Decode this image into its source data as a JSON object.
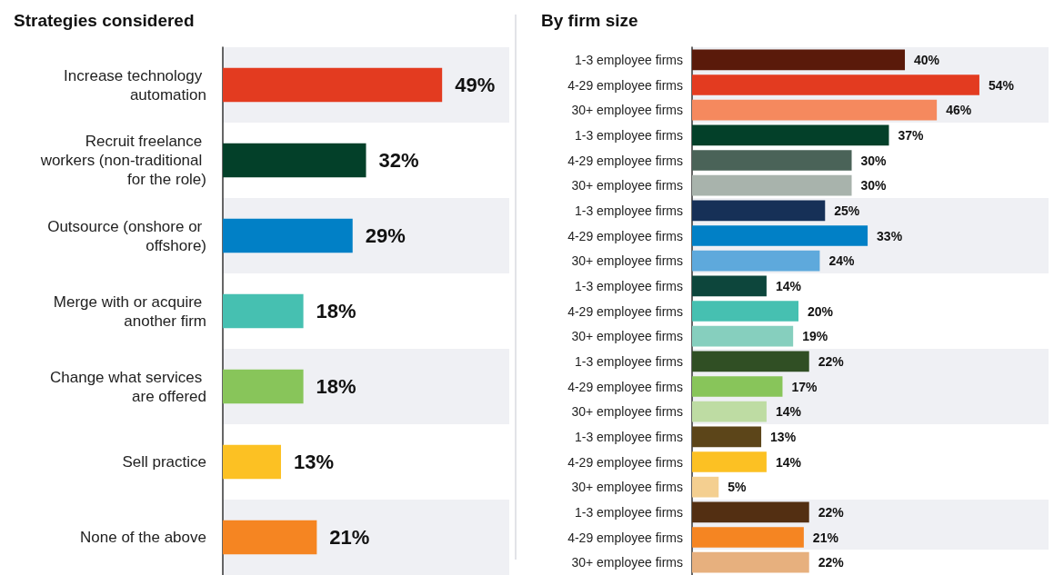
{
  "chart_data": [
    {
      "type": "bar",
      "orientation": "horizontal",
      "title": "Strategies considered",
      "categories": [
        "Increase technology automation",
        "Recruit freelance workers (non-traditional for the role)",
        "Outsource (onshore or offshore)",
        "Merge with or acquire another firm",
        "Change what services are offered",
        "Sell practice",
        "None of the above"
      ],
      "values": [
        49,
        32,
        29,
        18,
        18,
        13,
        21
      ],
      "colors": [
        "#e33b20",
        "#034029",
        "#0180c6",
        "#46c0b1",
        "#88c55a",
        "#fcc123",
        "#f58522"
      ],
      "value_labels": [
        "49%",
        "32%",
        "29%",
        "18%",
        "18%",
        "13%",
        "21%"
      ],
      "xlim": [
        0,
        64
      ],
      "tick_labels": "y"
    },
    {
      "type": "bar",
      "orientation": "horizontal",
      "title": "By firm size",
      "categories": [
        "1-3 employee firms",
        "4-29 employee firms",
        "30+ employee firms",
        "1-3 employee firms",
        "4-29 employee firms",
        "30+ employee firms",
        "1-3 employee firms",
        "4-29 employee firms",
        "30+ employee firms",
        "1-3 employee firms",
        "4-29 employee firms",
        "30+ employee firms",
        "1-3 employee firms",
        "4-29 employee firms",
        "30+ employee firms",
        "1-3 employee firms",
        "4-29 employee firms",
        "30+ employee firms",
        "1-3 employee firms",
        "4-29 employee firms",
        "30+ employee firms"
      ],
      "values": [
        40,
        54,
        46,
        37,
        30,
        30,
        25,
        33,
        24,
        14,
        20,
        19,
        22,
        17,
        14,
        13,
        14,
        5,
        22,
        21,
        22
      ],
      "colors": [
        "#5a1a0a",
        "#e33b20",
        "#f5895e",
        "#034029",
        "#4a6358",
        "#a8b3ac",
        "#163057",
        "#0180c6",
        "#5ea9dc",
        "#0d463c",
        "#46c0b1",
        "#86cfbe",
        "#304f24",
        "#88c55a",
        "#bedca3",
        "#5c4519",
        "#fcc123",
        "#f4cf90",
        "#532f12",
        "#f58522",
        "#e7b07e"
      ],
      "value_labels": [
        "40%",
        "54%",
        "46%",
        "37%",
        "30%",
        "30%",
        "25%",
        "33%",
        "24%",
        "14%",
        "20%",
        "19%",
        "22%",
        "17%",
        "14%",
        "13%",
        "14%",
        "5%",
        "22%",
        "21%",
        "22%"
      ],
      "xlim": [
        0,
        67
      ],
      "tick_labels": "y"
    }
  ]
}
